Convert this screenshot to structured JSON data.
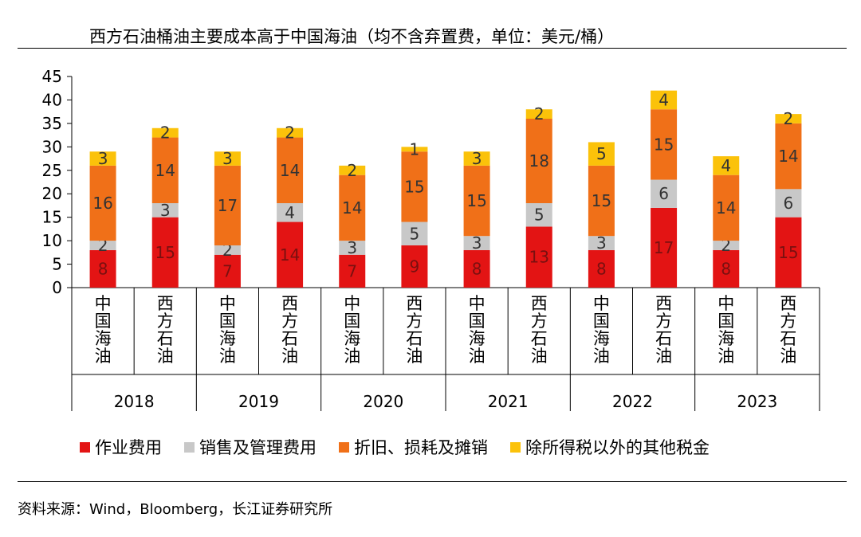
{
  "title": "西方石油桶油主要成本高于中国海油（均不含弃置费，单位：美元/桶）",
  "source": "资料来源：Wind，Bloomberg，长江证券研究所",
  "legend": [
    {
      "label": "作业费用",
      "color": "#e31414"
    },
    {
      "label": "销售及管理费用",
      "color": "#c8c8c8"
    },
    {
      "label": "折旧、损耗及摊销",
      "color": "#f07018"
    },
    {
      "label": "除所得税以外的其他税金",
      "color": "#fbc20a"
    }
  ],
  "chart_data": {
    "type": "bar",
    "stacked": true,
    "ylim": [
      0,
      45
    ],
    "yticks": [
      0,
      5,
      10,
      15,
      20,
      25,
      30,
      35,
      40,
      45
    ],
    "groups": [
      "2018",
      "2019",
      "2020",
      "2021",
      "2022",
      "2023"
    ],
    "categories": [
      "中国海油",
      "西方石油",
      "中国海油",
      "西方石油",
      "中国海油",
      "西方石油",
      "中国海油",
      "西方石油",
      "中国海油",
      "西方石油",
      "中国海油",
      "西方石油"
    ],
    "series": [
      {
        "name": "作业费用",
        "color": "#e31414",
        "values": [
          8,
          15,
          7,
          14,
          7,
          9,
          8,
          13,
          8,
          17,
          8,
          15
        ]
      },
      {
        "name": "销售及管理费用",
        "color": "#c8c8c8",
        "values": [
          2,
          3,
          2,
          4,
          3,
          5,
          3,
          5,
          3,
          6,
          2,
          6
        ]
      },
      {
        "name": "折旧、损耗及摊销",
        "color": "#f07018",
        "values": [
          16,
          14,
          17,
          14,
          14,
          15,
          15,
          18,
          15,
          15,
          14,
          14
        ]
      },
      {
        "name": "除所得税以外的其他税金",
        "color": "#fbc20a",
        "values": [
          3,
          2,
          3,
          2,
          2,
          1,
          3,
          2,
          5,
          4,
          4,
          2
        ]
      }
    ]
  }
}
